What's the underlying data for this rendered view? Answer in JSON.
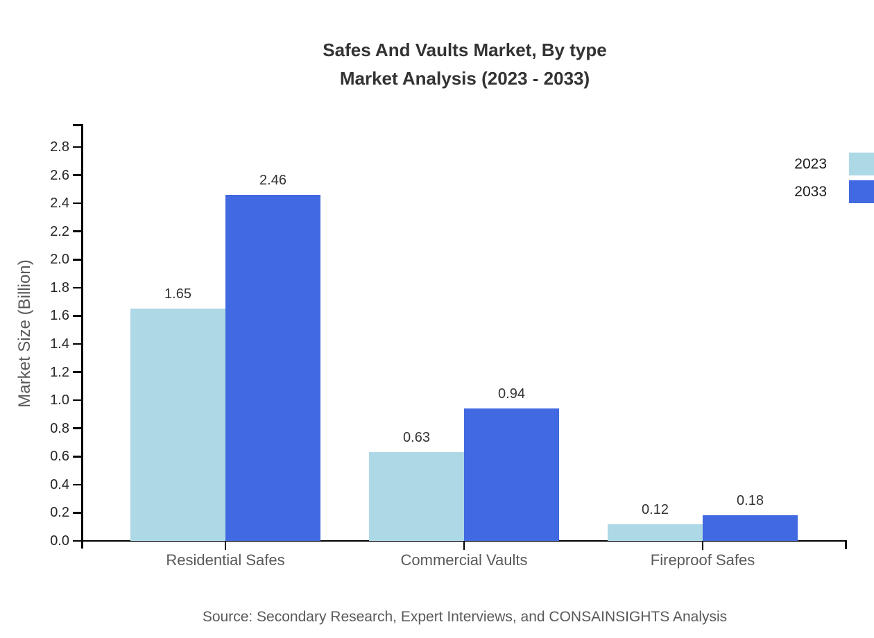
{
  "title": {
    "line1": "Safes And Vaults Market, By type",
    "line2": "Market Analysis (2023 - 2033)"
  },
  "source": "Source: Secondary Research, Expert Interviews, and CONSAINSIGHTS Analysis",
  "chart_data": {
    "type": "bar",
    "title": "Safes And Vaults Market, By type — Market Analysis (2023 - 2033)",
    "categories": [
      "Residential Safes",
      "Commercial Vaults",
      "Fireproof Safes"
    ],
    "series": [
      {
        "name": "2023",
        "color": "#ADD8E6",
        "values": [
          1.65,
          0.63,
          0.12
        ]
      },
      {
        "name": "2033",
        "color": "#4169E1",
        "values": [
          2.46,
          0.94,
          0.18
        ]
      }
    ],
    "xlabel": "",
    "ylabel": "Market Size (Billion)",
    "ylim": [
      0.0,
      2.9
    ],
    "ytick_step": 0.2,
    "ytick_labels": [
      "0.0",
      "0.2",
      "0.4",
      "0.6",
      "0.8",
      "1.0",
      "1.2",
      "1.4",
      "1.6",
      "1.8",
      "2.0",
      "2.2",
      "2.4",
      "2.6",
      "2.8"
    ],
    "value_labels": true,
    "grid": false,
    "legend_position": "top-right"
  },
  "colors": {
    "axis": "#000000",
    "title_text": "#333333",
    "tick_text": "#262626",
    "muted_text": "#595959",
    "background": "#ffffff"
  }
}
